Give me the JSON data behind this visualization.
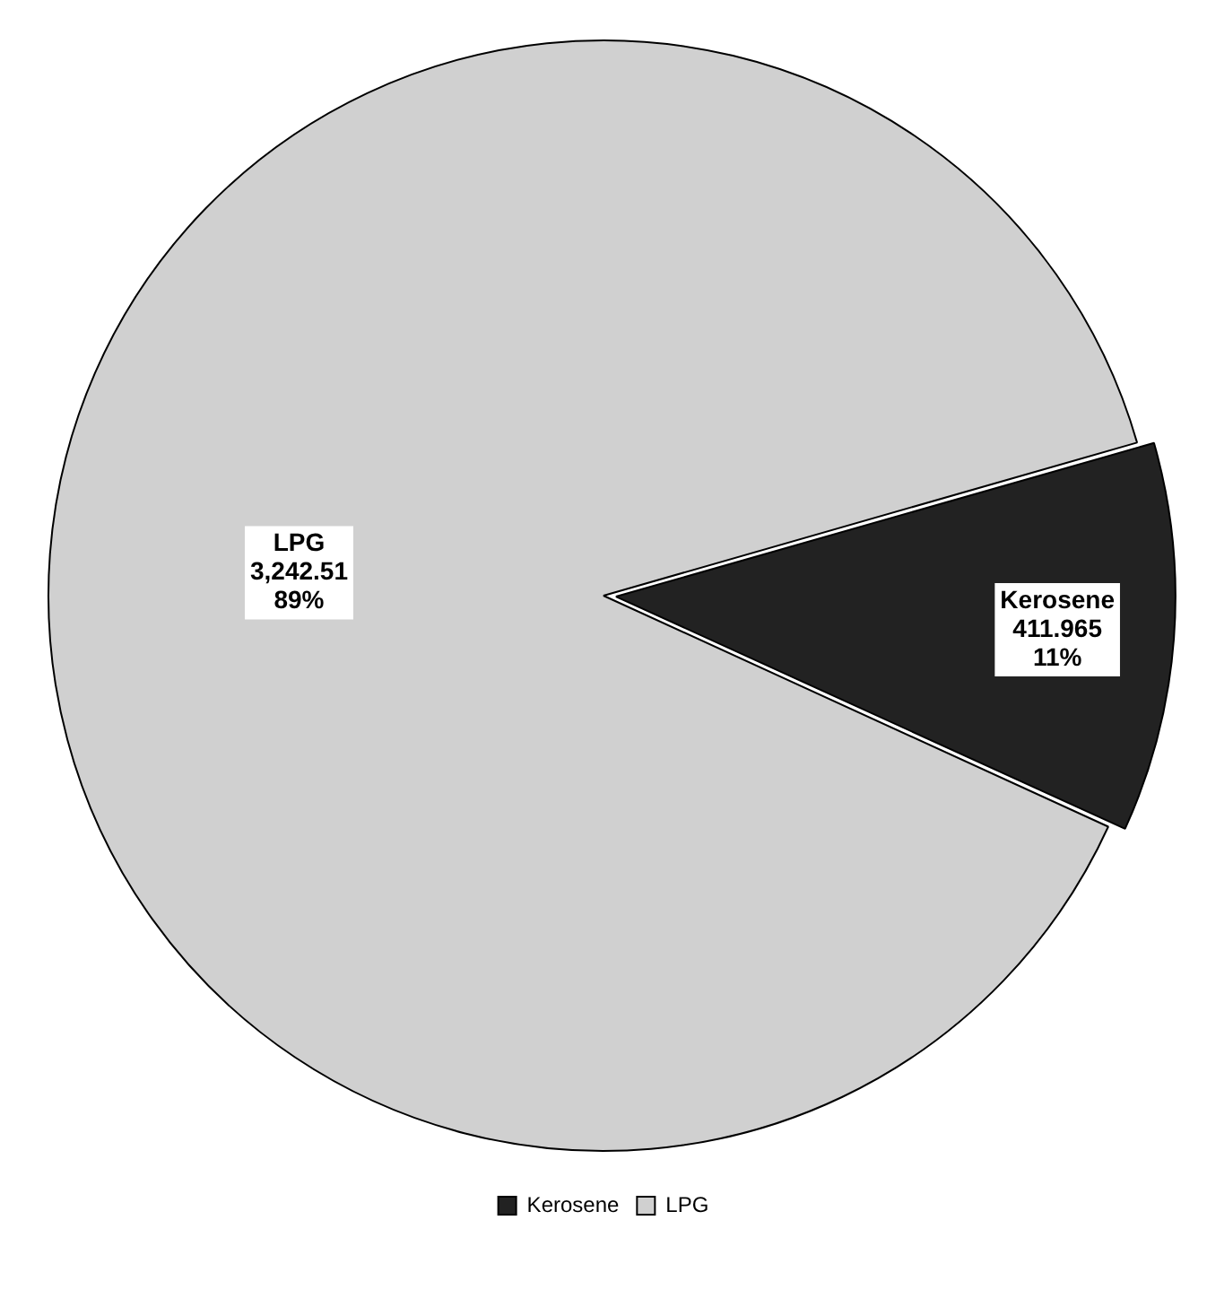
{
  "chart_data": {
    "type": "pie",
    "categories": [
      "Kerosene",
      "LPG"
    ],
    "values": [
      411.965,
      3242.51
    ],
    "colors": [
      "#222222",
      "#d0d0d0"
    ],
    "value_labels": [
      "411.965\n11%",
      "3,242.51\n89%"
    ],
    "legend": "bottom"
  }
}
